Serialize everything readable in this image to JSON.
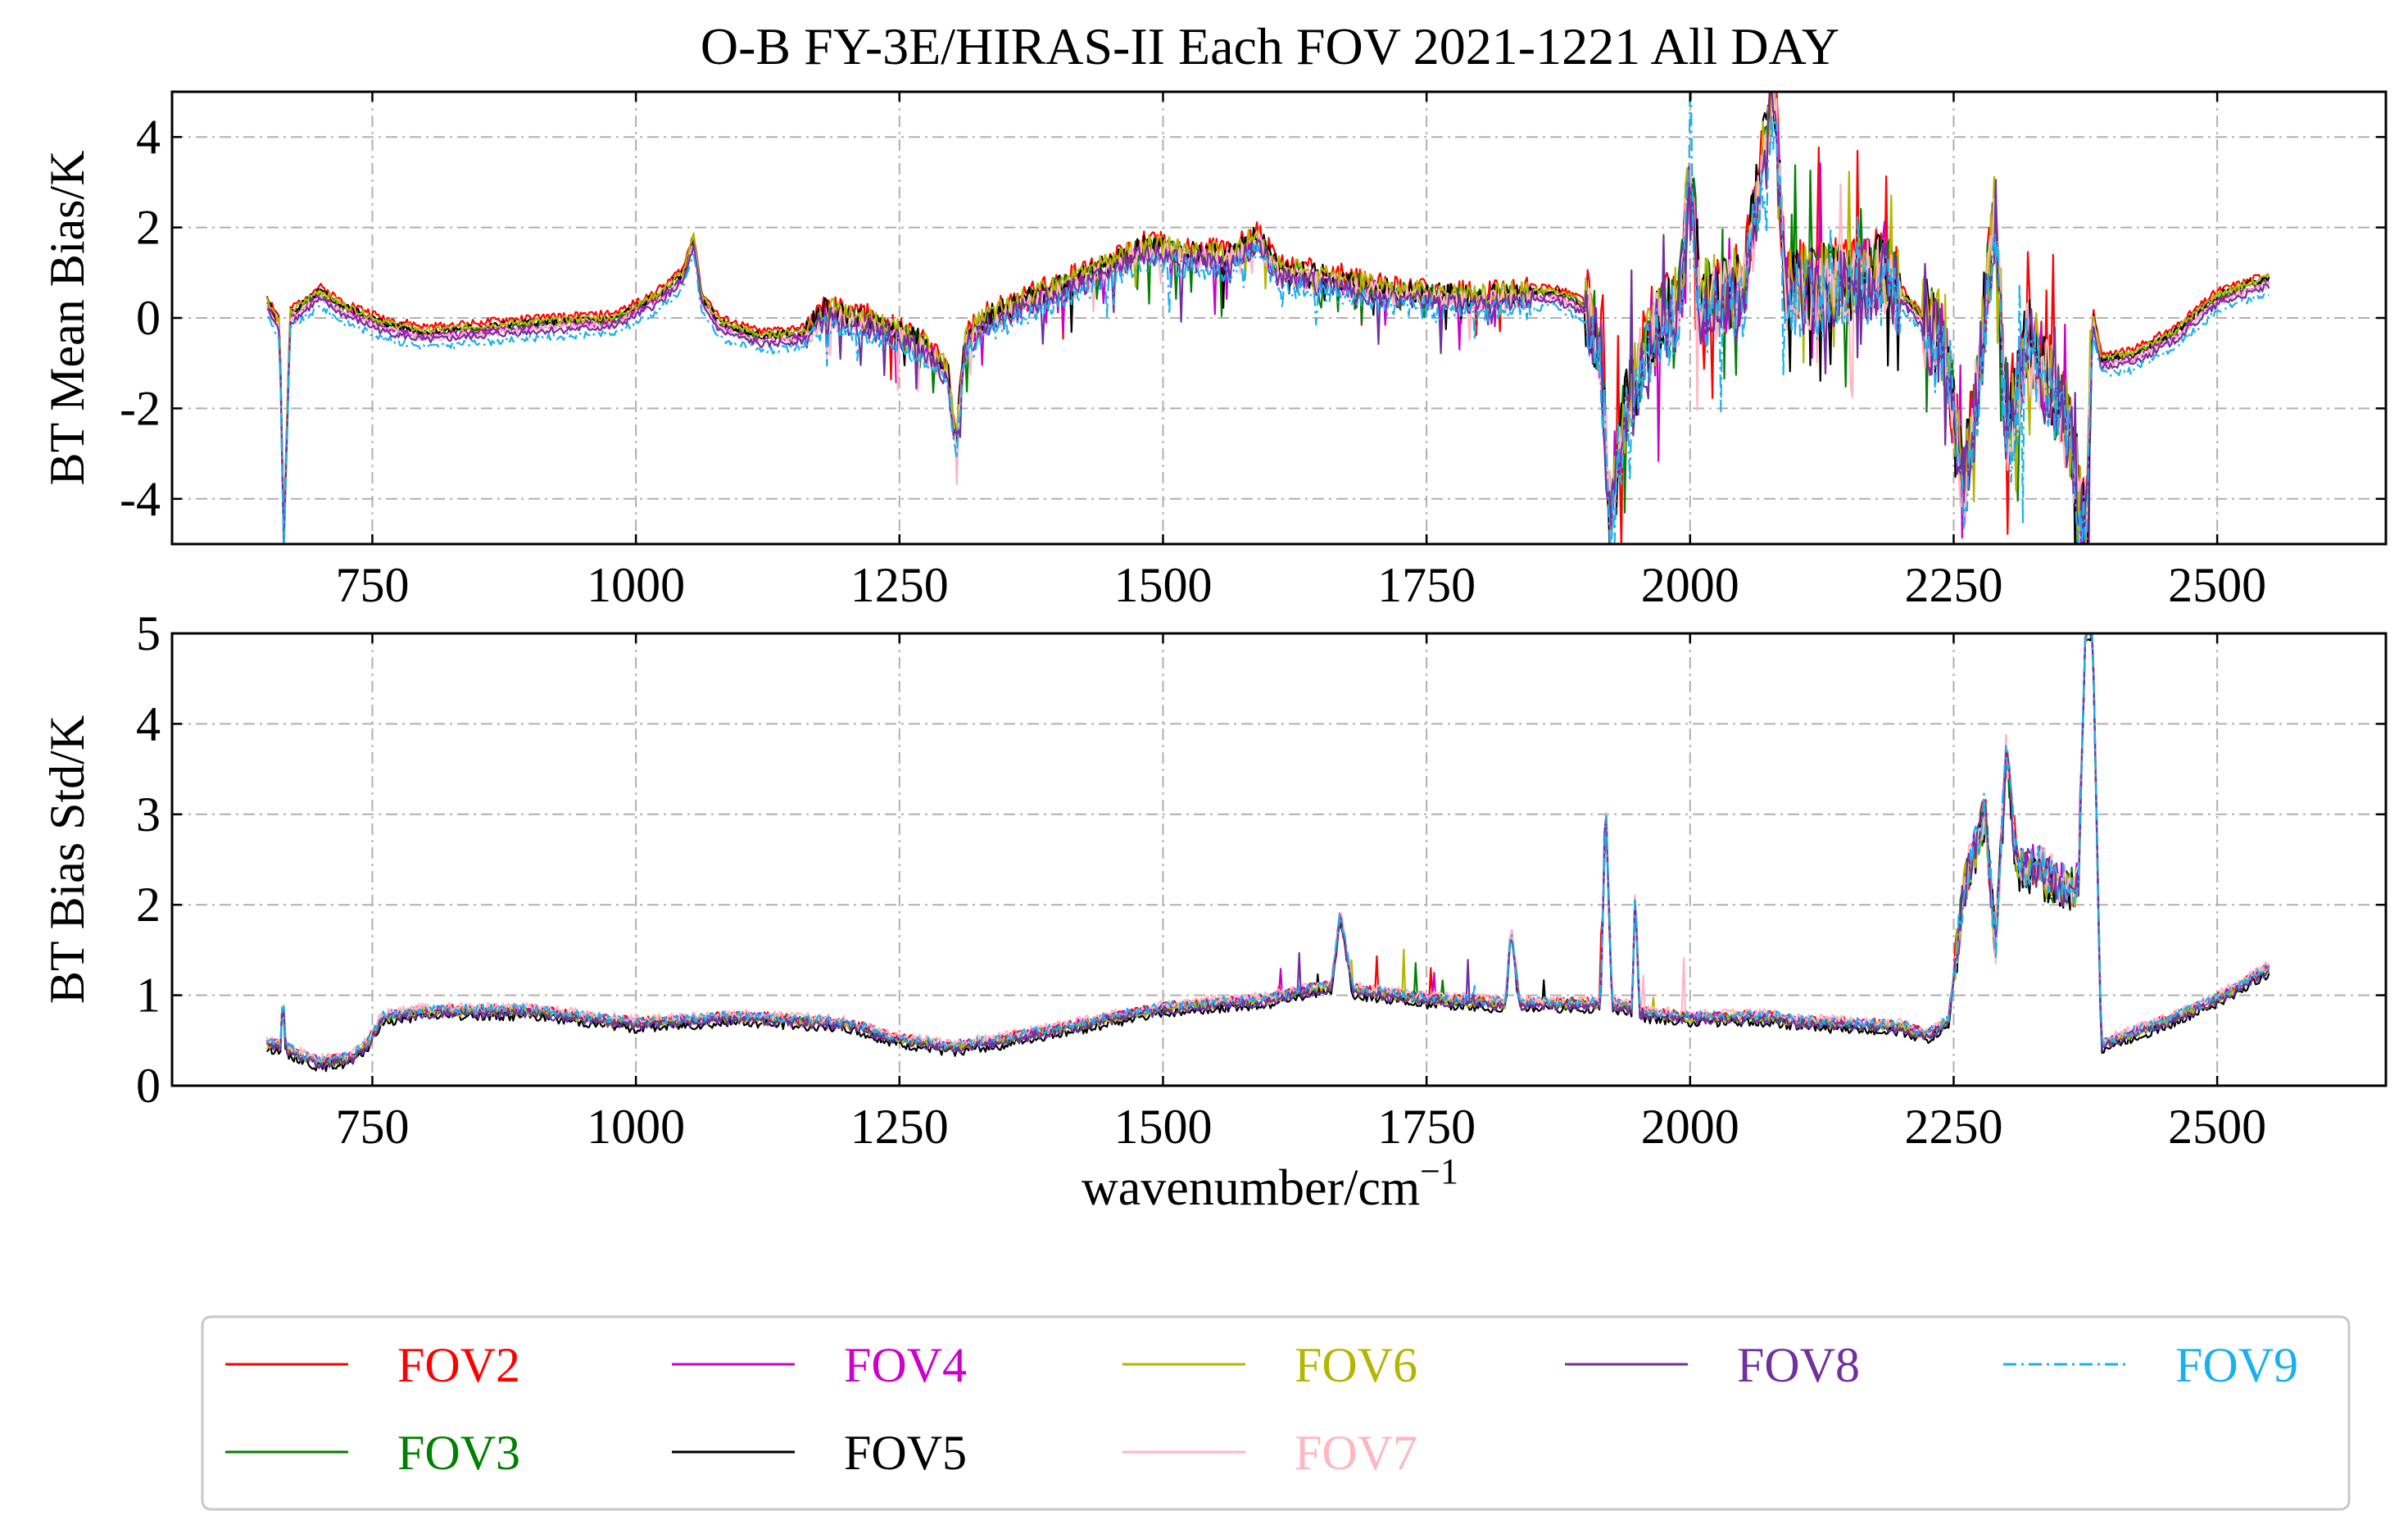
{
  "title": "O-B FY-3E/HIRAS-II Each FOV 2021-1221 All DAY",
  "xlabel_base": "wavenumber/cm",
  "xlabel_sup": "−1",
  "chart_data": [
    {
      "type": "line",
      "panel": "top",
      "ylabel": "BT Mean Bias/K",
      "xlim": [
        560,
        2660
      ],
      "ylim": [
        -5,
        5
      ],
      "xticks": [
        750,
        1000,
        1250,
        1500,
        1750,
        2000,
        2250,
        2500
      ],
      "yticks": [
        -4,
        -2,
        0,
        2,
        4
      ],
      "grid": true,
      "anchors": [
        [
          650,
          0.3
        ],
        [
          662,
          -0.2
        ],
        [
          666,
          -5.0
        ],
        [
          672,
          0.0
        ],
        [
          700,
          0.5
        ],
        [
          720,
          0.2
        ],
        [
          760,
          -0.2
        ],
        [
          800,
          -0.4
        ],
        [
          900,
          -0.2
        ],
        [
          980,
          -0.1
        ],
        [
          1020,
          0.4
        ],
        [
          1045,
          0.9
        ],
        [
          1055,
          1.7
        ],
        [
          1062,
          0.4
        ],
        [
          1080,
          -0.2
        ],
        [
          1120,
          -0.5
        ],
        [
          1160,
          -0.4
        ],
        [
          1180,
          0.1
        ],
        [
          1230,
          -0.2
        ],
        [
          1270,
          -0.6
        ],
        [
          1295,
          -1.2
        ],
        [
          1304,
          -2.8
        ],
        [
          1312,
          -0.6
        ],
        [
          1330,
          -0.1
        ],
        [
          1380,
          0.4
        ],
        [
          1440,
          1.0
        ],
        [
          1480,
          1.5
        ],
        [
          1520,
          1.4
        ],
        [
          1560,
          1.3
        ],
        [
          1590,
          1.7
        ],
        [
          1610,
          1.0
        ],
        [
          1660,
          0.8
        ],
        [
          1720,
          0.5
        ],
        [
          1800,
          0.4
        ],
        [
          1870,
          0.5
        ],
        [
          1900,
          0.2
        ],
        [
          1915,
          -0.6
        ],
        [
          1925,
          -4.8
        ],
        [
          1935,
          -2.5
        ],
        [
          1960,
          -0.5
        ],
        [
          1990,
          0.3
        ],
        [
          2000,
          3.2
        ],
        [
          2010,
          0.3
        ],
        [
          2050,
          0.6
        ],
        [
          2080,
          4.9
        ],
        [
          2090,
          0.6
        ],
        [
          2150,
          0.7
        ],
        [
          2180,
          1.0
        ],
        [
          2210,
          0.2
        ],
        [
          2240,
          -0.6
        ],
        [
          2260,
          -3.8
        ],
        [
          2275,
          -1.0
        ],
        [
          2290,
          2.4
        ],
        [
          2300,
          -3.0
        ],
        [
          2320,
          -0.5
        ],
        [
          2340,
          -1.5
        ],
        [
          2360,
          -2.5
        ],
        [
          2375,
          -4.9
        ],
        [
          2382,
          0.0
        ],
        [
          2390,
          -1.0
        ],
        [
          2420,
          -0.9
        ],
        [
          2460,
          -0.4
        ],
        [
          2500,
          0.4
        ],
        [
          2550,
          0.8
        ]
      ],
      "series": [
        {
          "name": "FOV2",
          "color": "#ff0000",
          "dash": "solid",
          "offset": 0.2,
          "seed": 2
        },
        {
          "name": "FOV3",
          "color": "#008000",
          "dash": "solid",
          "offset": 0.05,
          "seed": 3
        },
        {
          "name": "FOV4",
          "color": "#cc00cc",
          "dash": "solid",
          "offset": 0.0,
          "seed": 4
        },
        {
          "name": "FOV5",
          "color": "#000000",
          "dash": "solid",
          "offset": 0.1,
          "seed": 5
        },
        {
          "name": "FOV6",
          "color": "#b5b500",
          "dash": "solid",
          "offset": 0.12,
          "seed": 6
        },
        {
          "name": "FOV7",
          "color": "#ffb6c1",
          "dash": "solid",
          "offset": -0.05,
          "seed": 7
        },
        {
          "name": "FOV8",
          "color": "#7030a0",
          "dash": "solid",
          "offset": -0.1,
          "seed": 8
        },
        {
          "name": "FOV9",
          "color": "#1ab0f0",
          "dash": "dashdot",
          "offset": -0.25,
          "seed": 9
        }
      ]
    },
    {
      "type": "line",
      "panel": "bottom",
      "ylabel": "BT Bias Std/K",
      "xlim": [
        560,
        2660
      ],
      "ylim": [
        0,
        5
      ],
      "xticks": [
        750,
        1000,
        1250,
        1500,
        1750,
        2000,
        2250,
        2500
      ],
      "yticks": [
        0,
        1,
        2,
        3,
        4,
        5
      ],
      "grid": true,
      "anchors": [
        [
          650,
          0.45
        ],
        [
          663,
          0.45
        ],
        [
          665,
          1.0
        ],
        [
          668,
          0.4
        ],
        [
          700,
          0.25
        ],
        [
          730,
          0.3
        ],
        [
          745,
          0.45
        ],
        [
          760,
          0.75
        ],
        [
          800,
          0.82
        ],
        [
          900,
          0.82
        ],
        [
          1000,
          0.68
        ],
        [
          1050,
          0.72
        ],
        [
          1100,
          0.75
        ],
        [
          1200,
          0.68
        ],
        [
          1250,
          0.5
        ],
        [
          1300,
          0.42
        ],
        [
          1350,
          0.5
        ],
        [
          1400,
          0.62
        ],
        [
          1500,
          0.85
        ],
        [
          1600,
          0.95
        ],
        [
          1660,
          1.1
        ],
        [
          1668,
          1.9
        ],
        [
          1680,
          1.05
        ],
        [
          1750,
          0.95
        ],
        [
          1825,
          0.9
        ],
        [
          1830,
          1.75
        ],
        [
          1838,
          0.9
        ],
        [
          1915,
          0.9
        ],
        [
          1920,
          3.1
        ],
        [
          1926,
          0.9
        ],
        [
          1945,
          0.85
        ],
        [
          1948,
          2.2
        ],
        [
          1952,
          0.8
        ],
        [
          2000,
          0.75
        ],
        [
          2080,
          0.75
        ],
        [
          2100,
          0.7
        ],
        [
          2200,
          0.65
        ],
        [
          2225,
          0.55
        ],
        [
          2245,
          0.7
        ],
        [
          2260,
          2.2
        ],
        [
          2280,
          3.0
        ],
        [
          2290,
          1.5
        ],
        [
          2300,
          3.7
        ],
        [
          2310,
          2.4
        ],
        [
          2330,
          2.4
        ],
        [
          2350,
          2.2
        ],
        [
          2368,
          2.2
        ],
        [
          2375,
          5.0
        ],
        [
          2382,
          5.0
        ],
        [
          2390,
          0.45
        ],
        [
          2450,
          0.7
        ],
        [
          2500,
          0.95
        ],
        [
          2550,
          1.3
        ]
      ],
      "series": [
        {
          "name": "FOV2",
          "color": "#ff0000",
          "dash": "solid",
          "offset": 0.03,
          "seed": 12
        },
        {
          "name": "FOV3",
          "color": "#008000",
          "dash": "solid",
          "offset": 0.0,
          "seed": 13
        },
        {
          "name": "FOV4",
          "color": "#cc00cc",
          "dash": "solid",
          "offset": 0.02,
          "seed": 14
        },
        {
          "name": "FOV5",
          "color": "#000000",
          "dash": "solid",
          "offset": -0.05,
          "seed": 15
        },
        {
          "name": "FOV6",
          "color": "#b5b500",
          "dash": "solid",
          "offset": 0.0,
          "seed": 16
        },
        {
          "name": "FOV7",
          "color": "#ffb6c1",
          "dash": "solid",
          "offset": 0.05,
          "seed": 17
        },
        {
          "name": "FOV8",
          "color": "#7030a0",
          "dash": "solid",
          "offset": -0.02,
          "seed": 18
        },
        {
          "name": "FOV9",
          "color": "#1ab0f0",
          "dash": "dashdot",
          "offset": 0.03,
          "seed": 19
        }
      ]
    }
  ],
  "legend": {
    "position": "bottom",
    "entries": [
      {
        "label": "FOV2",
        "color": "#ff0000",
        "dash": "solid"
      },
      {
        "label": "FOV4",
        "color": "#cc00cc",
        "dash": "solid"
      },
      {
        "label": "FOV6",
        "color": "#b5b500",
        "dash": "solid"
      },
      {
        "label": "FOV8",
        "color": "#7030a0",
        "dash": "solid"
      },
      {
        "label": "FOV9",
        "color": "#1ab0f0",
        "dash": "dashdot"
      },
      {
        "label": "FOV3",
        "color": "#008000",
        "dash": "solid"
      },
      {
        "label": "FOV5",
        "color": "#000000",
        "dash": "solid"
      },
      {
        "label": "FOV7",
        "color": "#ffb6c1",
        "dash": "solid"
      }
    ]
  }
}
